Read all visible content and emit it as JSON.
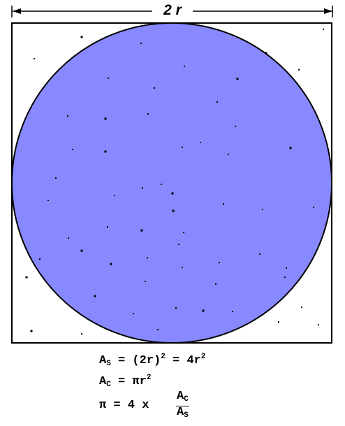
{
  "diagram": {
    "dimension_label": "2 r",
    "colors": {
      "circle_fill": "#8888ff",
      "outline": "#000000",
      "background": "#ffffff",
      "points": "#000000"
    }
  },
  "formulas": {
    "line1": {
      "lhs": "A",
      "lhs_sub": "S",
      "rhs_a": " = (2r)",
      "rhs_a_sup": "2",
      "rhs_b": " = 4r",
      "rhs_b_sup": "2"
    },
    "line2": {
      "lhs": "A",
      "lhs_sub": "C",
      "rhs": " = πr",
      "rhs_sup": "2"
    },
    "line3": {
      "lhs": "π = 4 x",
      "num": "A",
      "num_sub": "C",
      "den": "A",
      "den_sub": "S"
    }
  }
}
